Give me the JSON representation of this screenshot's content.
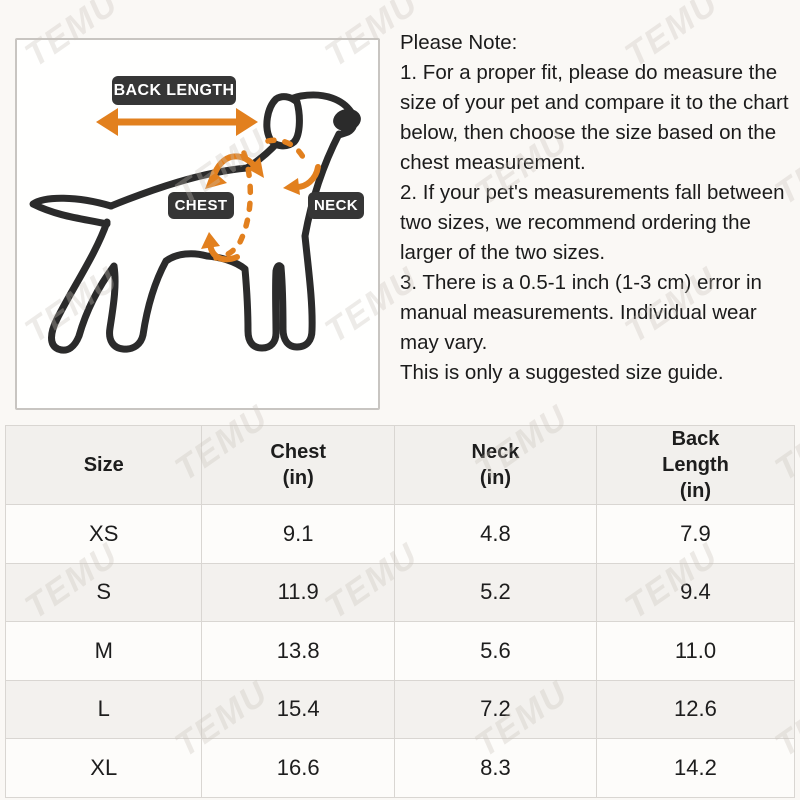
{
  "watermark": {
    "text": "TEMU"
  },
  "diagram": {
    "back_length_label": "BACK LENGTH",
    "chest_label": "CHEST",
    "neck_label": "NECK"
  },
  "notes": {
    "title": "Please Note:",
    "items": [
      "1. For a proper fit, please do measure the size of your pet and compare it to the chart below, then choose the size based on the chest measurement.",
      "2. If your pet's measurements fall between two sizes, we recommend ordering the larger of the two sizes.",
      "3. There is a 0.5-1 inch (1-3 cm) error in manual measurements. Individual wear may vary.",
      "This is only a suggested size guide."
    ]
  },
  "size_table": {
    "columns": [
      {
        "lines": [
          "Size"
        ]
      },
      {
        "lines": [
          "Chest",
          "(in)"
        ]
      },
      {
        "lines": [
          "Neck",
          "(in)"
        ]
      },
      {
        "lines": [
          "Back",
          "Length",
          "(in)"
        ]
      }
    ],
    "rows": [
      {
        "size": "XS",
        "chest": "9.1",
        "neck": "4.8",
        "back_length": "7.9"
      },
      {
        "size": "S",
        "chest": "11.9",
        "neck": "5.2",
        "back_length": "9.4"
      },
      {
        "size": "M",
        "chest": "13.8",
        "neck": "5.6",
        "back_length": "11.0"
      },
      {
        "size": "L",
        "chest": "15.4",
        "neck": "7.2",
        "back_length": "12.6"
      },
      {
        "size": "XL",
        "chest": "16.6",
        "neck": "8.3",
        "back_length": "14.2"
      }
    ]
  },
  "colors": {
    "accent_orange": "#E2801E",
    "label_background": "#363636",
    "dog_outline": "#2B2B2B",
    "page_background": "#FAF8F5",
    "header_row_background": "#F2F0ED",
    "alt_row_background": "#F3F1EE",
    "table_border": "#D9D6D2"
  }
}
